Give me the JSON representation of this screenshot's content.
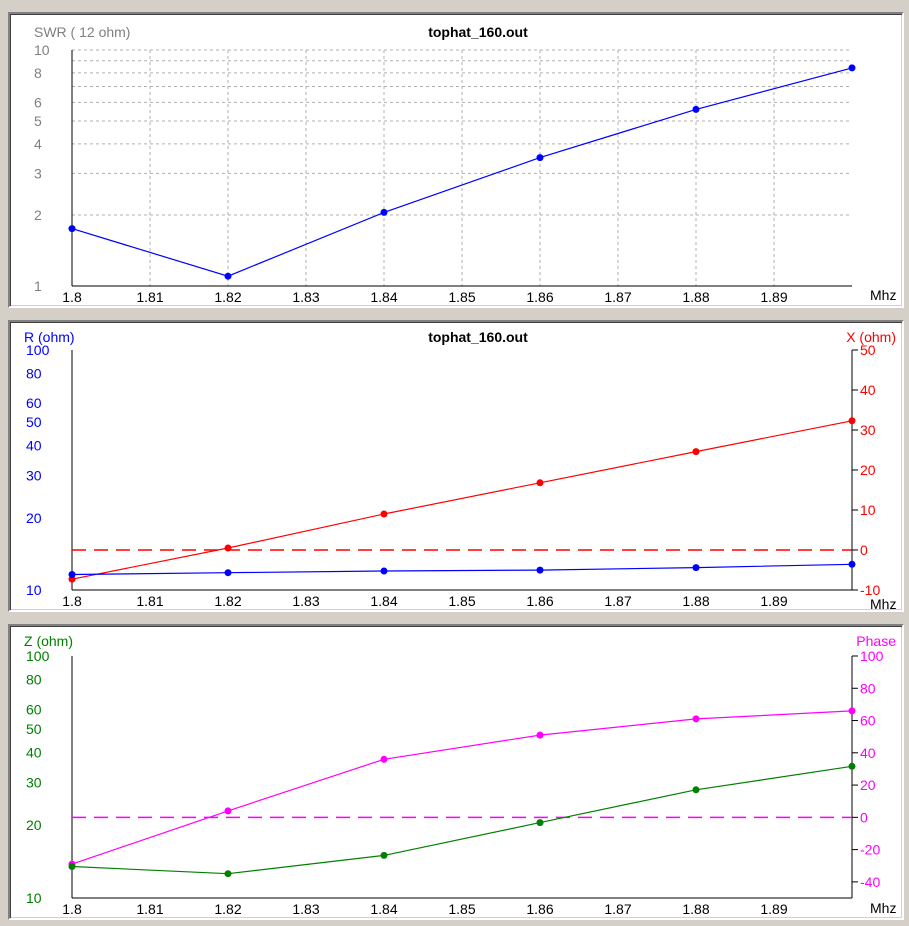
{
  "colors": {
    "swr": "#0000ff",
    "r": "#0000ff",
    "x": "#ff0000",
    "z": "#008000",
    "phase": "#ff00ff",
    "axis": "#000000",
    "grid": "#b0b0b0",
    "label_gray": "#808080"
  },
  "chart_data": [
    {
      "type": "line",
      "title": "tophat_160.out",
      "ylabel": "SWR ( 12 ohm)",
      "xlabel": "Mhz",
      "yscale": "log",
      "ylim": [
        1,
        10
      ],
      "xlim": [
        1.8,
        1.9
      ],
      "grid": true,
      "x_ticks": [
        "1.8",
        "1.81",
        "1.82",
        "1.83",
        "1.84",
        "1.85",
        "1.86",
        "1.87",
        "1.88",
        "1.89"
      ],
      "y_ticks": [
        "1",
        "2",
        "3",
        "4",
        "5",
        "6",
        "8",
        "10"
      ],
      "x": [
        1.8,
        1.82,
        1.84,
        1.86,
        1.88,
        1.9
      ],
      "series": [
        {
          "values": [
            1.75,
            1.1,
            2.05,
            3.5,
            5.6,
            8.4
          ]
        }
      ]
    },
    {
      "type": "line",
      "title": "tophat_160.out",
      "ylabel": "R (ohm)",
      "y2label": "X (ohm)",
      "xlabel": "Mhz",
      "yscale": "log",
      "ylim": [
        10,
        100
      ],
      "y2lim": [
        -10,
        50
      ],
      "xlim": [
        1.8,
        1.9
      ],
      "grid": false,
      "x_ticks": [
        "1.8",
        "1.81",
        "1.82",
        "1.83",
        "1.84",
        "1.85",
        "1.86",
        "1.87",
        "1.88",
        "1.89"
      ],
      "y_ticks": [
        "10",
        "20",
        "30",
        "40",
        "50",
        "60",
        "80",
        "100"
      ],
      "y2_ticks": [
        "-10",
        "0",
        "10",
        "20",
        "30",
        "40",
        "50"
      ],
      "x": [
        1.8,
        1.82,
        1.84,
        1.86,
        1.88,
        1.9
      ],
      "series": [
        {
          "axis": "left",
          "values": [
            11.6,
            11.8,
            12.0,
            12.1,
            12.4,
            12.8
          ]
        },
        {
          "axis": "right",
          "values": [
            -7.3,
            0.5,
            9.0,
            16.8,
            24.6,
            32.3
          ]
        }
      ],
      "reference_line": {
        "axis": "right",
        "value": 0
      }
    },
    {
      "type": "line",
      "ylabel": "Z (ohm)",
      "y2label": "Phase",
      "xlabel": "Mhz",
      "yscale": "log",
      "ylim": [
        10,
        100
      ],
      "y2lim": [
        -50,
        100
      ],
      "xlim": [
        1.8,
        1.9
      ],
      "grid": false,
      "x_ticks": [
        "1.8",
        "1.81",
        "1.82",
        "1.83",
        "1.84",
        "1.85",
        "1.86",
        "1.87",
        "1.88",
        "1.89"
      ],
      "y_ticks": [
        "10",
        "20",
        "30",
        "40",
        "50",
        "60",
        "80",
        "100"
      ],
      "y2_ticks": [
        "-40",
        "-20",
        "0",
        "20",
        "40",
        "60",
        "80",
        "100"
      ],
      "x": [
        1.8,
        1.82,
        1.84,
        1.86,
        1.88,
        1.9
      ],
      "series": [
        {
          "axis": "left",
          "values": [
            13.5,
            12.6,
            15.0,
            20.5,
            28.0,
            35.0
          ]
        },
        {
          "axis": "right",
          "values": [
            -29,
            4,
            36,
            51,
            61,
            66
          ]
        }
      ],
      "reference_line": {
        "axis": "right",
        "value": 0
      }
    }
  ]
}
